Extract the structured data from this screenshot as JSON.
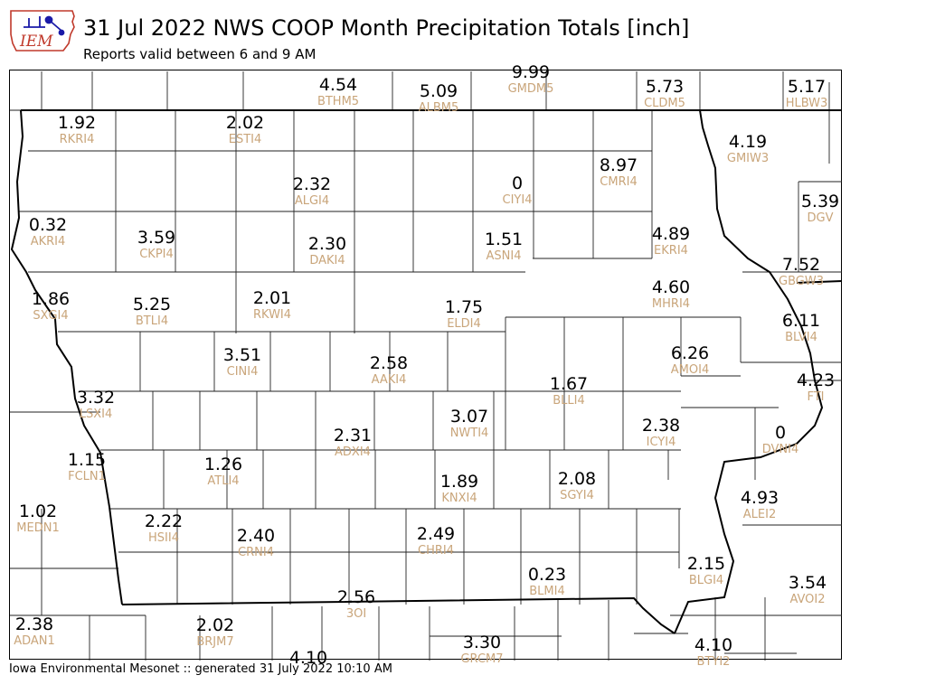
{
  "header": {
    "logo_text": "IEM",
    "title": "31 Jul 2022 NWS COOP Month Precipitation Totals [inch]",
    "subtitle": "Reports valid between 6 and 9 AM"
  },
  "footer": {
    "text": "Iowa Environmental Mesonet :: generated 31 July 2022 10:10 AM"
  },
  "colors": {
    "value_text": "#000000",
    "station_id_text": "#c9a57a",
    "county_lines": "#222222",
    "state_lines": "#000000"
  },
  "stations": [
    {
      "value": "4.54",
      "id": "BTHM5"
    },
    {
      "value": "5.09",
      "id": "ALBM5"
    },
    {
      "value": "9.99",
      "id": "GMDM5"
    },
    {
      "value": "5.73",
      "id": "CLDM5"
    },
    {
      "value": "5.17",
      "id": "HLBW3"
    },
    {
      "value": "1.92",
      "id": "RKRI4"
    },
    {
      "value": "2.02",
      "id": "ESTI4"
    },
    {
      "value": "4.19",
      "id": "GMIW3"
    },
    {
      "value": "8.97",
      "id": "CMRI4"
    },
    {
      "value": "0",
      "id": "CIYI4"
    },
    {
      "value": "2.32",
      "id": "ALGI4"
    },
    {
      "value": "5.39",
      "id": "DGV"
    },
    {
      "value": "0.32",
      "id": "AKRI4"
    },
    {
      "value": "3.59",
      "id": "CKPI4"
    },
    {
      "value": "2.30",
      "id": "DAKI4"
    },
    {
      "value": "1.51",
      "id": "ASNI4"
    },
    {
      "value": "4.89",
      "id": "EKRI4"
    },
    {
      "value": "7.52",
      "id": "GBGW3"
    },
    {
      "value": "1.86",
      "id": "SXGI4"
    },
    {
      "value": "5.25",
      "id": "BTLI4"
    },
    {
      "value": "2.01",
      "id": "RKWI4"
    },
    {
      "value": "1.75",
      "id": "ELDI4"
    },
    {
      "value": "4.60",
      "id": "MHRI4"
    },
    {
      "value": "6.11",
      "id": "BLVI4"
    },
    {
      "value": "3.51",
      "id": "CINI4"
    },
    {
      "value": "2.58",
      "id": "AAKI4"
    },
    {
      "value": "6.26",
      "id": "AMOI4"
    },
    {
      "value": "1.67",
      "id": "BLLI4"
    },
    {
      "value": "4.23",
      "id": "FTI"
    },
    {
      "value": "3.32",
      "id": "LSXI4"
    },
    {
      "value": "3.07",
      "id": "NWTI4"
    },
    {
      "value": "2.38",
      "id": "ICYI4"
    },
    {
      "value": "0",
      "id": "DVNI4"
    },
    {
      "value": "2.31",
      "id": "ADXI4"
    },
    {
      "value": "1.15",
      "id": "FCLN1"
    },
    {
      "value": "1.26",
      "id": "ATLI4"
    },
    {
      "value": "1.89",
      "id": "KNXI4"
    },
    {
      "value": "2.08",
      "id": "SGYI4"
    },
    {
      "value": "4.93",
      "id": "ALEI2"
    },
    {
      "value": "1.02",
      "id": "MEDN1"
    },
    {
      "value": "2.22",
      "id": "HSII4"
    },
    {
      "value": "2.40",
      "id": "CRNI4"
    },
    {
      "value": "2.49",
      "id": "CHRI4"
    },
    {
      "value": "2.15",
      "id": "BLGI4"
    },
    {
      "value": "3.54",
      "id": "AVOI2"
    },
    {
      "value": "0.23",
      "id": "BLMI4"
    },
    {
      "value": "2.56",
      "id": "3OI"
    },
    {
      "value": "2.38",
      "id": "ADAN1"
    },
    {
      "value": "2.02",
      "id": "BRJM7"
    },
    {
      "value": "3.30",
      "id": "GRCM7"
    },
    {
      "value": "4.10",
      "id": "BTYI2"
    },
    {
      "value": "4.10",
      "id": ""
    }
  ]
}
